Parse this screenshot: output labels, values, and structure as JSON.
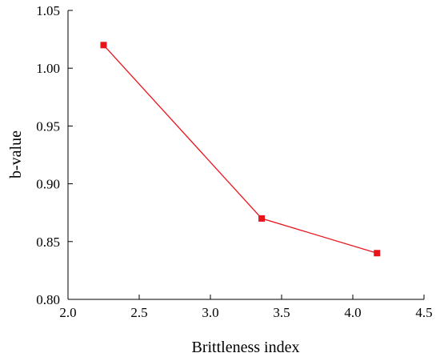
{
  "chart_data": {
    "type": "line",
    "title": "",
    "xlabel": "Brittleness index",
    "ylabel": "b-value",
    "xlim": [
      2.0,
      4.5
    ],
    "ylim": [
      0.8,
      1.05
    ],
    "xticks": [
      "2.0",
      "2.5",
      "3.0",
      "3.5",
      "4.0",
      "4.5"
    ],
    "yticks": [
      "0.80",
      "0.85",
      "0.90",
      "0.95",
      "1.00",
      "1.05"
    ],
    "grid": false,
    "legend": "none",
    "series": [
      {
        "x": [
          2.25,
          3.36,
          4.17
        ],
        "y": [
          1.02,
          0.87,
          0.84
        ],
        "color": "#e8141b",
        "marker": "square"
      }
    ]
  }
}
